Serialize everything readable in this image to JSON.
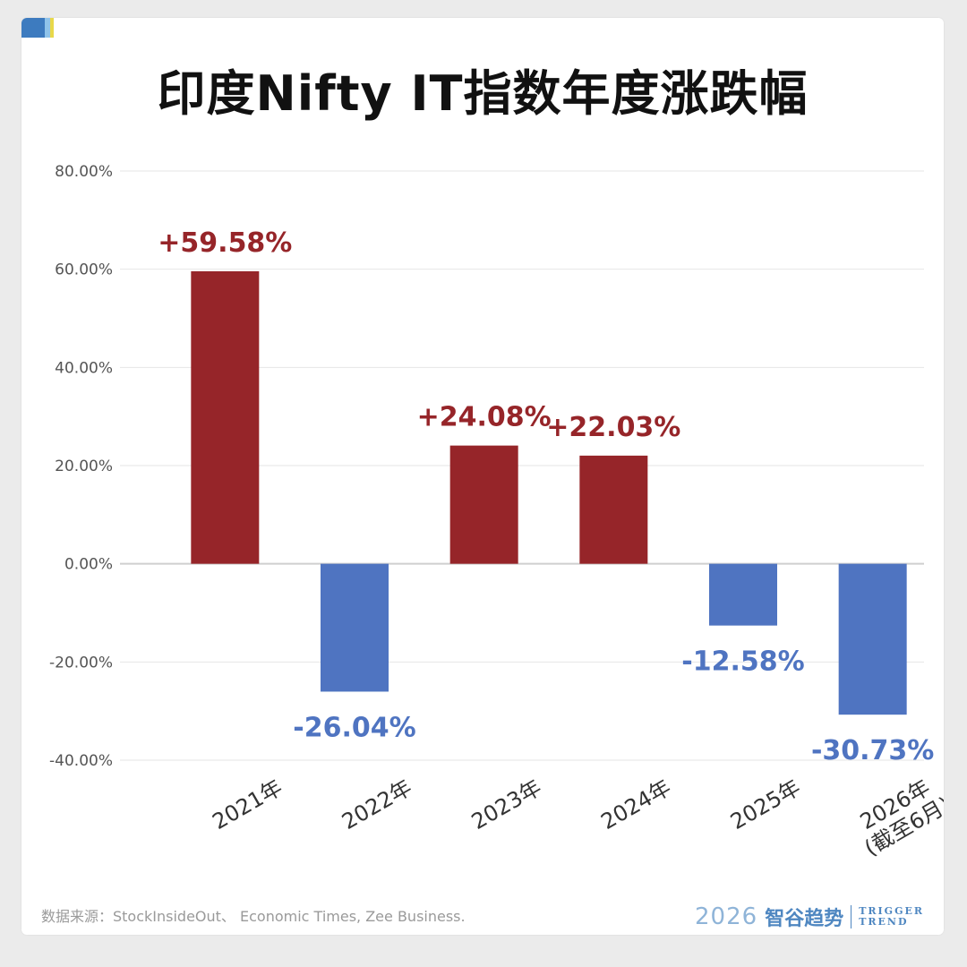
{
  "title": "印度Nifty IT指数年度涨跌幅",
  "source": "数据来源：StockInsideOut、 Economic Times, Zee Business.",
  "brand": {
    "year": "2026",
    "name": "智谷趋势",
    "en_line1": "TRIGGER",
    "en_line2": "TREND"
  },
  "colors": {
    "positive": "#962529",
    "negative": "#4f74c1",
    "brand": "#4f87c1"
  },
  "chart_data": {
    "type": "bar",
    "categories": [
      "2021年",
      "2022年",
      "2023年",
      "2024年",
      "2025年",
      "2026年\n(截至6月)"
    ],
    "values": [
      59.58,
      -26.04,
      24.08,
      22.03,
      -12.58,
      -30.73
    ],
    "data_labels": [
      "+59.58%",
      "-26.04%",
      "+24.08%",
      "+22.03%",
      "-12.58%",
      "-30.73%"
    ],
    "ylim": [
      -40,
      80
    ],
    "yticks": [
      80,
      60,
      40,
      20,
      0,
      -20,
      -40
    ],
    "ytick_labels": [
      "80.00%",
      "60.00%",
      "40.00%",
      "20.00%",
      "0.00%",
      "-20.00%",
      "-40.00%"
    ],
    "xlabel": "",
    "ylabel": "",
    "grid": true,
    "legend": "none"
  }
}
